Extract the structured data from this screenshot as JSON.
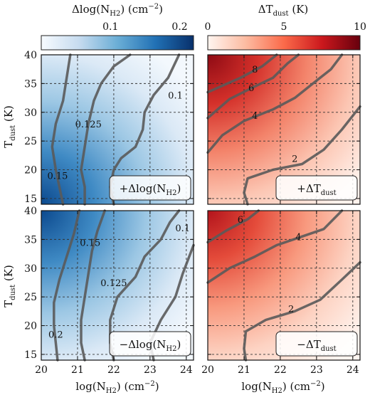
{
  "figure": {
    "x_axis_label": "log(N",
    "x_axis_label_sub": "H2",
    "x_axis_label_unit": ") (cm",
    "x_axis_label_sup": "−2",
    "x_axis_label_tail": ")",
    "y_axis_label_main": "T",
    "y_axis_label_sub": "dust",
    "y_axis_label_unit": " (K)"
  },
  "colorbars": [
    {
      "name": "nh2",
      "label_pre": "Δlog(N",
      "label_sub": "H2",
      "label_post": ") (cm",
      "label_sup": "−2",
      "label_tail": ")",
      "range": [
        0.0,
        0.22
      ],
      "ticks": [
        {
          "value": 0.1,
          "label": "0.1"
        },
        {
          "value": 0.2,
          "label": "0.2"
        }
      ],
      "colors": [
        "#f7fbff",
        "#c6dbef",
        "#6baed6",
        "#2171b5",
        "#08306b"
      ]
    },
    {
      "name": "tdust",
      "label_pre": "ΔT",
      "label_sub": "dust",
      "label_post": " (K)",
      "range": [
        0,
        10
      ],
      "ticks": [
        {
          "value": 0,
          "label": "0"
        },
        {
          "value": 5,
          "label": "5"
        },
        {
          "value": 10,
          "label": "10"
        }
      ],
      "colors": [
        "#fff5f0",
        "#fcbba1",
        "#fb6a4a",
        "#cb181d",
        "#67000d"
      ]
    }
  ],
  "chart_data": [
    {
      "type": "heatmap",
      "panel": "top-left",
      "colormap": "blues",
      "legend_pre": "+Δlog(N",
      "legend_sub": "H2",
      "legend_post": ")",
      "xlim": [
        20,
        24.2
      ],
      "ylim": [
        14,
        40
      ],
      "x_ticks": [
        20,
        21,
        22,
        23,
        24
      ],
      "y_ticks": [
        15,
        20,
        25,
        30,
        35,
        40
      ],
      "grid": true,
      "contours": [
        {
          "level": "0.15",
          "points": [
            [
              20.6,
              14
            ],
            [
              20.5,
              17
            ],
            [
              20.4,
              20
            ],
            [
              20.3,
              24
            ],
            [
              20.4,
              28
            ],
            [
              20.6,
              32
            ],
            [
              20.7,
              36
            ],
            [
              20.8,
              40
            ]
          ],
          "label_at": [
            20.45,
            19
          ]
        },
        {
          "level": "0.125",
          "points": [
            [
              21.2,
              14
            ],
            [
              21.2,
              17
            ],
            [
              21.1,
              20
            ],
            [
              21.2,
              24
            ],
            [
              21.3,
              28
            ],
            [
              21.45,
              32
            ],
            [
              21.65,
              35
            ],
            [
              22.0,
              38
            ],
            [
              22.45,
              40
            ]
          ],
          "label_at": [
            21.3,
            28
          ]
        },
        {
          "level": "0.1",
          "points": [
            [
              22.0,
              14
            ],
            [
              21.9,
              17
            ],
            [
              22.0,
              20
            ],
            [
              22.2,
              22
            ],
            [
              22.6,
              24
            ],
            [
              22.8,
              27
            ],
            [
              22.85,
              30
            ],
            [
              23.1,
              33
            ],
            [
              23.5,
              36
            ],
            [
              23.8,
              40
            ]
          ],
          "label_at": [
            23.7,
            33
          ]
        }
      ]
    },
    {
      "type": "heatmap",
      "panel": "top-right",
      "colormap": "reds",
      "legend_pre": "+ΔT",
      "legend_sub": "dust",
      "legend_post": "",
      "xlim": [
        20,
        24.2
      ],
      "ylim": [
        14,
        40
      ],
      "x_ticks": [
        20,
        21,
        22,
        23,
        24
      ],
      "y_ticks": [
        15,
        20,
        25,
        30,
        35,
        40
      ],
      "grid": true,
      "contours": [
        {
          "level": "2",
          "points": [
            [
              21.1,
              14
            ],
            [
              21.0,
              16
            ],
            [
              21.1,
              18.5
            ],
            [
              21.8,
              20
            ],
            [
              22.6,
              21
            ],
            [
              23.2,
              23.5
            ],
            [
              23.7,
              27
            ],
            [
              24.2,
              31
            ]
          ],
          "label_at": [
            22.4,
            22
          ]
        },
        {
          "level": "4",
          "points": [
            [
              20.0,
              23
            ],
            [
              20.4,
              26
            ],
            [
              21.0,
              28.5
            ],
            [
              21.8,
              30.5
            ],
            [
              22.4,
              32.5
            ],
            [
              23.0,
              35.5
            ],
            [
              23.4,
              37.5
            ],
            [
              23.7,
              40
            ]
          ],
          "label_at": [
            21.3,
            29.5
          ]
        },
        {
          "level": "6",
          "points": [
            [
              20.0,
              29
            ],
            [
              20.6,
              32.3
            ],
            [
              21.3,
              34.5
            ],
            [
              21.8,
              36
            ],
            [
              22.2,
              38.5
            ],
            [
              22.5,
              40
            ]
          ],
          "label_at": [
            21.2,
            34.3
          ]
        },
        {
          "level": "8",
          "points": [
            [
              20.0,
              33.5
            ],
            [
              20.9,
              36
            ],
            [
              21.5,
              38
            ],
            [
              21.9,
              40
            ]
          ],
          "label_at": [
            21.3,
            37.5
          ]
        }
      ]
    },
    {
      "type": "heatmap",
      "panel": "bottom-left",
      "colormap": "blues",
      "legend_pre": "−Δlog(N",
      "legend_sub": "H2",
      "legend_post": ")",
      "xlim": [
        20,
        24.2
      ],
      "ylim": [
        14,
        40
      ],
      "x_ticks": [
        20,
        21,
        22,
        23,
        24
      ],
      "y_ticks": [
        15,
        20,
        25,
        30,
        35,
        40
      ],
      "grid": true,
      "contours": [
        {
          "level": "0.2",
          "points": [
            [
              20.45,
              14
            ],
            [
              20.4,
              17
            ],
            [
              20.35,
              20
            ],
            [
              20.35,
              24
            ],
            [
              20.5,
              28
            ],
            [
              20.7,
              32
            ],
            [
              20.9,
              36
            ],
            [
              21.05,
              40
            ]
          ],
          "label_at": [
            20.4,
            18.5
          ]
        },
        {
          "level": "0.15",
          "points": [
            [
              21.2,
              14
            ],
            [
              21.1,
              17
            ],
            [
              21.1,
              21
            ],
            [
              21.2,
              25
            ],
            [
              21.3,
              29
            ],
            [
              21.4,
              33
            ],
            [
              21.55,
              36.5
            ],
            [
              21.75,
              40
            ]
          ],
          "label_at": [
            21.35,
            34.5
          ]
        },
        {
          "level": "0.125",
          "points": [
            [
              22.0,
              14
            ],
            [
              21.9,
              17
            ],
            [
              21.9,
              21
            ],
            [
              22.1,
              25
            ],
            [
              22.6,
              28.5
            ],
            [
              22.85,
              32
            ],
            [
              23.3,
              35
            ],
            [
              23.55,
              38
            ],
            [
              23.8,
              40
            ]
          ],
          "label_at": [
            22.0,
            27.5
          ]
        },
        {
          "level": "0.1",
          "points": [
            [
              23.1,
              14
            ],
            [
              23.0,
              17
            ],
            [
              23.3,
              21
            ],
            [
              23.7,
              25
            ],
            [
              23.9,
              29
            ],
            [
              24.2,
              34
            ]
          ],
          "label_at": [
            23.9,
            37
          ]
        }
      ]
    },
    {
      "type": "heatmap",
      "panel": "bottom-right",
      "colormap": "reds",
      "legend_pre": "−ΔT",
      "legend_sub": "dust",
      "legend_post": "",
      "xlim": [
        20,
        24.2
      ],
      "ylim": [
        14,
        40
      ],
      "x_ticks": [
        20,
        21,
        22,
        23,
        24
      ],
      "y_ticks": [
        15,
        20,
        25,
        30,
        35,
        40
      ],
      "grid": true,
      "contours": [
        {
          "level": "2",
          "points": [
            [
              21.05,
              14
            ],
            [
              21.0,
              16
            ],
            [
              21.05,
              19
            ],
            [
              21.6,
              21
            ],
            [
              22.4,
              22.5
            ],
            [
              23.1,
              24.5
            ],
            [
              23.7,
              28
            ],
            [
              24.2,
              31
            ]
          ],
          "label_at": [
            22.3,
            23
          ]
        },
        {
          "level": "4",
          "points": [
            [
              20.0,
              27.5
            ],
            [
              20.6,
              30
            ],
            [
              21.3,
              32
            ],
            [
              21.9,
              34
            ],
            [
              22.6,
              35.5
            ],
            [
              23.2,
              36.8
            ],
            [
              23.7,
              40
            ]
          ],
          "label_at": [
            22.5,
            35.5
          ]
        },
        {
          "level": "6",
          "points": [
            [
              20.0,
              34.5
            ],
            [
              20.5,
              36.5
            ],
            [
              21.1,
              38.5
            ],
            [
              21.4,
              40
            ]
          ],
          "label_at": [
            20.9,
            38.5
          ]
        }
      ]
    }
  ]
}
